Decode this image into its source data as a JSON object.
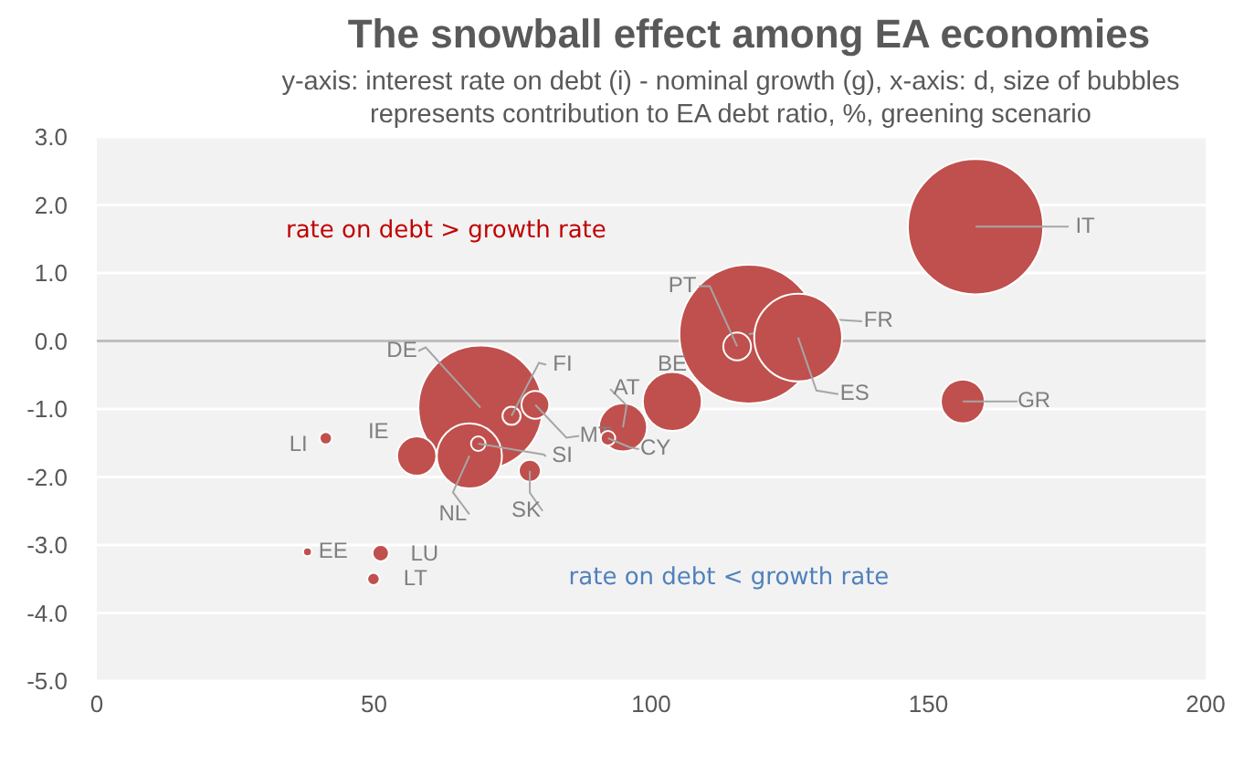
{
  "chart_data": {
    "type": "bubble",
    "title": "The snowball effect among EA economies",
    "subtitle": "y-axis: interest rate on debt (i) - nominal growth (g), x-axis: d, size of bubbles represents contribution to EA debt ratio, %, greening scenario",
    "series": [
      {
        "name": "FR",
        "color": "#c0504d",
        "x": [
          117.6
        ],
        "values": [
          0.1
        ],
        "sizes": [
          1
        ]
      },
      {
        "name": "IT",
        "color": "#c0504d",
        "x": [
          158.5
        ],
        "values": [
          1.68
        ],
        "sizes": [
          0.95
        ]
      },
      {
        "name": "DE",
        "color": "#c0504d",
        "x": [
          69.2
        ],
        "values": [
          -0.98
        ],
        "sizes": [
          0.8
        ]
      },
      {
        "name": "ES",
        "color": "#c0504d",
        "x": [
          126.5
        ],
        "values": [
          0.05
        ],
        "sizes": [
          0.4
        ]
      },
      {
        "name": "NL",
        "color": "#c0504d",
        "x": [
          67.2
        ],
        "values": [
          -1.69
        ],
        "sizes": [
          0.22
        ]
      },
      {
        "name": "BE",
        "color": "#c0504d",
        "x": [
          103.8
        ],
        "values": [
          -0.89
        ],
        "sizes": [
          0.18
        ]
      },
      {
        "name": "AT",
        "color": "#c0504d",
        "x": [
          94.9
        ],
        "values": [
          -1.27
        ],
        "sizes": [
          0.12
        ]
      },
      {
        "name": "GR",
        "color": "#c0504d",
        "x": [
          156.2
        ],
        "values": [
          -0.89
        ],
        "sizes": [
          0.1
        ]
      },
      {
        "name": "IE",
        "color": "#c0504d",
        "x": [
          57.7
        ],
        "values": [
          -1.69
        ],
        "sizes": [
          0.08
        ]
      },
      {
        "name": "PT",
        "color": "#c0504d",
        "x": [
          115.5
        ],
        "values": [
          -0.08
        ],
        "sizes": [
          0.04
        ]
      },
      {
        "name": "MT",
        "color": "#c0504d",
        "x": [
          79.1
        ],
        "values": [
          -0.94
        ],
        "sizes": [
          0.04
        ]
      },
      {
        "name": "SK",
        "color": "#c0504d",
        "x": [
          78.1
        ],
        "values": [
          -1.91
        ],
        "sizes": [
          0.025
        ]
      },
      {
        "name": "FI",
        "color": "#c0504d",
        "x": [
          74.8
        ],
        "values": [
          -1.1
        ],
        "sizes": [
          0.017
        ]
      },
      {
        "name": "CY",
        "color": "#c0504d",
        "x": [
          92.2
        ],
        "values": [
          -1.43
        ],
        "sizes": [
          0.011
        ]
      },
      {
        "name": "SI",
        "color": "#c0504d",
        "x": [
          68.8
        ],
        "values": [
          -1.51
        ],
        "sizes": [
          0.011
        ]
      },
      {
        "name": "LU",
        "color": "#c0504d",
        "x": [
          51.2
        ],
        "values": [
          -3.12
        ],
        "sizes": [
          0.014
        ]
      },
      {
        "name": "LI",
        "color": "#c0504d",
        "x": [
          41.3
        ],
        "values": [
          -1.43
        ],
        "sizes": [
          0.008
        ]
      },
      {
        "name": "LT",
        "color": "#c0504d",
        "x": [
          49.9
        ],
        "values": [
          -3.5
        ],
        "sizes": [
          0.008
        ]
      },
      {
        "name": "EE",
        "color": "#c0504d",
        "x": [
          38
        ],
        "values": [
          -3.1
        ],
        "sizes": [
          0.004
        ]
      }
    ],
    "xlim": [
      0,
      200
    ],
    "xticks": [
      0,
      50,
      100,
      150,
      200
    ],
    "ylim": [
      -5,
      3
    ],
    "yticks": [
      {
        "value": -5,
        "label": "-5.0"
      },
      {
        "value": -4,
        "label": "-4.0"
      },
      {
        "value": -3,
        "label": "-3.0"
      },
      {
        "value": -2,
        "label": "-2.0"
      },
      {
        "value": -1,
        "label": "-1.0"
      },
      {
        "value": 0,
        "label": "0.0"
      },
      {
        "value": 1,
        "label": "1.0"
      },
      {
        "value": 2,
        "label": "2.0"
      },
      {
        "value": 3,
        "label": "3.0"
      }
    ],
    "grid": "y",
    "legend": false,
    "ref_lines": [
      {
        "axis": "y",
        "value": 0,
        "color": "#bfbfbf"
      }
    ],
    "annotations": [
      "rate on debt > growth rate",
      "rate on debt < growth rate"
    ]
  }
}
